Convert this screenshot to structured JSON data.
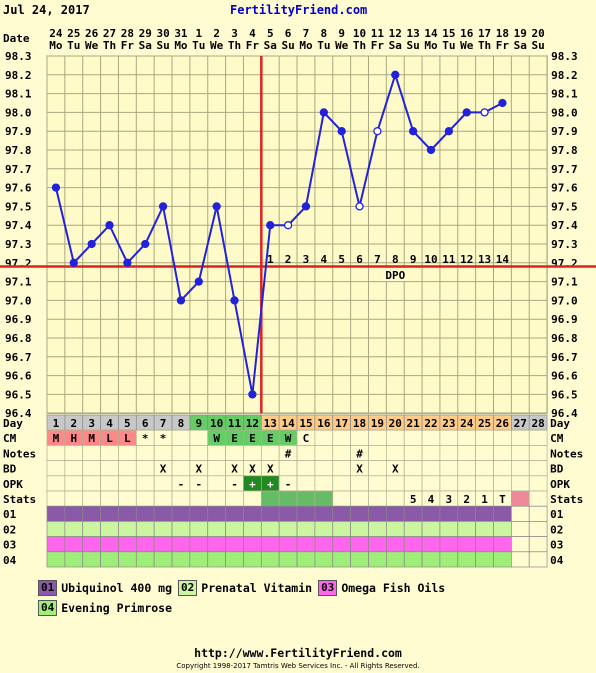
{
  "header": {
    "date": "Jul 24, 2017",
    "brand": "FertilityFriend.com"
  },
  "colors": {
    "temp_line": "#2222dd",
    "coverline": "#dd2222",
    "grid": "#a8a880",
    "purple": "#8a5aa8",
    "green_light": "#ccf5a0",
    "pink_magenta": "#ff66ee",
    "green_bright": "#a0ee7a"
  },
  "chart_data": {
    "type": "line",
    "xlabel": "Date",
    "ylabel": "",
    "dates": [
      "24",
      "25",
      "26",
      "27",
      "28",
      "29",
      "30",
      "31",
      "1",
      "2",
      "3",
      "4",
      "5",
      "6",
      "7",
      "8",
      "9",
      "10",
      "11",
      "12",
      "13",
      "14",
      "15",
      "16",
      "17",
      "18",
      "19",
      "20"
    ],
    "weekdays": [
      "Mo",
      "Tu",
      "We",
      "Th",
      "Fr",
      "Sa",
      "Su",
      "Mo",
      "Tu",
      "We",
      "Th",
      "Fr",
      "Sa",
      "Su",
      "Mo",
      "Tu",
      "We",
      "Th",
      "Fr",
      "Sa",
      "Su",
      "Mo",
      "Tu",
      "We",
      "Th",
      "Fr",
      "Sa",
      "Su"
    ],
    "days": [
      "1",
      "2",
      "3",
      "4",
      "5",
      "6",
      "7",
      "8",
      "9",
      "10",
      "11",
      "12",
      "13",
      "14",
      "15",
      "16",
      "17",
      "18",
      "19",
      "20",
      "21",
      "22",
      "23",
      "24",
      "25",
      "26",
      "27",
      "28"
    ],
    "ylim": [
      96.4,
      98.3
    ],
    "y_ticks": [
      "98.3",
      "98.2",
      "98.1",
      "98.0",
      "97.9",
      "97.8",
      "97.7",
      "97.6",
      "97.5",
      "97.4",
      "97.3",
      "97.2",
      "97.1",
      "97.0",
      "96.9",
      "96.8",
      "96.7",
      "96.6",
      "96.5",
      "96.4"
    ],
    "series": [
      {
        "values": [
          97.6,
          97.2,
          97.3,
          97.4,
          97.2,
          97.3,
          97.5,
          97.0,
          97.1,
          97.5,
          97.0,
          96.5,
          97.4,
          97.4,
          97.5,
          98.0,
          97.9,
          97.5,
          97.9,
          98.2,
          97.9,
          97.8,
          97.9,
          98.0,
          98.0,
          98.05,
          null,
          null
        ],
        "open_markers": [
          false,
          false,
          false,
          false,
          false,
          false,
          false,
          false,
          false,
          false,
          false,
          false,
          false,
          true,
          false,
          false,
          false,
          true,
          true,
          false,
          false,
          false,
          false,
          false,
          true,
          false,
          false,
          false
        ]
      }
    ],
    "coverline": 97.18,
    "ovulation_day": 12,
    "dpo_label": "DPO",
    "dpo_numbers": [
      "1",
      "2",
      "3",
      "4",
      "5",
      "6",
      "7",
      "8",
      "9",
      "10",
      "11",
      "12",
      "13",
      "14"
    ]
  },
  "rows": {
    "labels": [
      "Day",
      "CM",
      "Notes",
      "BD",
      "OPK",
      "Stats"
    ],
    "cm": [
      "M",
      "H",
      "M",
      "L",
      "L",
      "*",
      "*",
      "",
      "",
      "W",
      "E",
      "E",
      "E",
      "W",
      "C",
      "",
      "",
      "",
      "",
      "",
      "",
      "",
      "",
      "",
      "",
      "",
      "",
      ""
    ],
    "notes": [
      "",
      "",
      "",
      "",
      "",
      "",
      "",
      "",
      "",
      "",
      "",
      "",
      "",
      "#",
      "",
      "",
      "",
      "#",
      "",
      "",
      "",
      "",
      "",
      "",
      "",
      "",
      "",
      ""
    ],
    "bd": [
      "",
      "",
      "",
      "",
      "",
      "",
      "X",
      "",
      "X",
      "",
      "X",
      "X",
      "X",
      "",
      "",
      "",
      "",
      "X",
      "",
      "X",
      "",
      "",
      "",
      "",
      "",
      "",
      "",
      ""
    ],
    "opk": [
      "",
      "",
      "",
      "",
      "",
      "",
      "",
      "-",
      "-",
      "",
      "-",
      "+",
      "+",
      "-",
      "",
      "",
      "",
      "",
      "",
      "",
      "",
      "",
      "",
      "",
      "",
      "",
      "",
      ""
    ],
    "stats": [
      "",
      "",
      "",
      "",
      "",
      "",
      "",
      "",
      "",
      "",
      "",
      "",
      "",
      "",
      "",
      "",
      "",
      "",
      "",
      "",
      "5",
      "4",
      "3",
      "2",
      "1",
      "T",
      "",
      ""
    ]
  },
  "supplements": [
    {
      "code": "01",
      "name": "Ubiquinol 400 mg"
    },
    {
      "code": "02",
      "name": "Prenatal Vitamin"
    },
    {
      "code": "03",
      "name": "Omega Fish Oils"
    },
    {
      "code": "04",
      "name": "Evening Primrose"
    }
  ],
  "footer": {
    "url": "http://www.FertilityFriend.com",
    "copyright": "Copyright 1998-2017 Tamtris Web Services Inc. - All Rights Reserved."
  }
}
